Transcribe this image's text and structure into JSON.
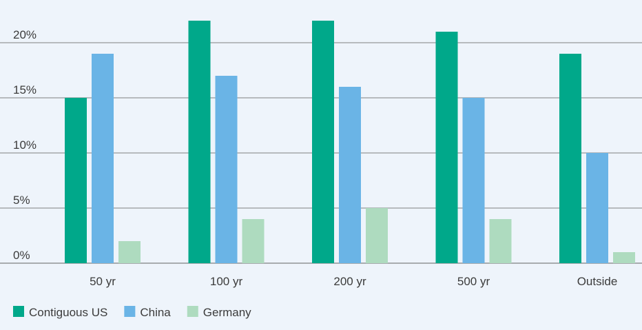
{
  "chart_data": {
    "type": "bar",
    "categories": [
      "50 yr",
      "100 yr",
      "200 yr",
      "500 yr",
      "Outside"
    ],
    "series": [
      {
        "name": "Contiguous US",
        "color": "#00a88a",
        "values": [
          15,
          22,
          22,
          21,
          19
        ]
      },
      {
        "name": "China",
        "color": "#6ab4e6",
        "values": [
          19,
          17,
          16,
          15,
          10
        ]
      },
      {
        "name": "Germany",
        "color": "#aedbbf",
        "values": [
          2,
          4,
          5,
          4,
          1
        ]
      }
    ],
    "ylim": [
      0,
      22
    ],
    "yticks": [
      {
        "value": 0,
        "label": "0%"
      },
      {
        "value": 5,
        "label": "5%"
      },
      {
        "value": 10,
        "label": "10%"
      },
      {
        "value": 15,
        "label": "15%"
      },
      {
        "value": 20,
        "label": "20%"
      }
    ],
    "grid": true,
    "legend_position": "bottom-left"
  }
}
